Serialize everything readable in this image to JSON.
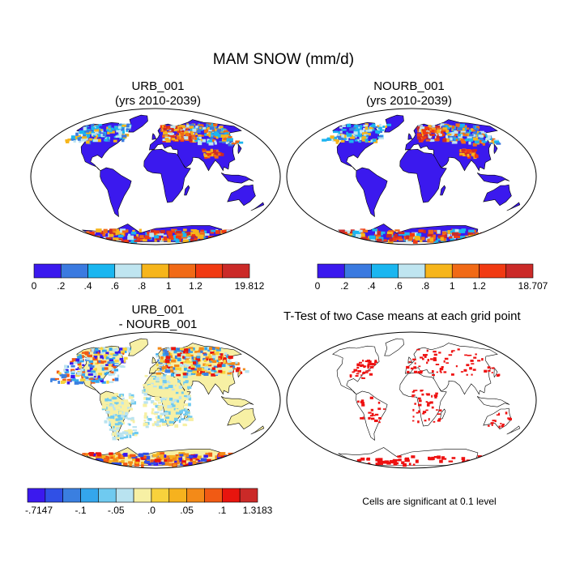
{
  "figure": {
    "title": "MAM SNOW (mm/d)",
    "note": "Cells are significant at 0.1 level"
  },
  "panels": [
    {
      "title_line1": "URB_001",
      "title_line2": "(yrs 2010-2039)",
      "colorbar": {
        "colors": [
          "#3b19ee",
          "#3b7ae0",
          "#1ab6f0",
          "#bfe5f0",
          "#f6b51b",
          "#f16a16",
          "#f13a12",
          "#cb2a28"
        ],
        "labels": [
          "0",
          ".2",
          ".4",
          ".6",
          ".8",
          "1",
          "1.2",
          "19.812"
        ]
      }
    },
    {
      "title_line1": "NOURB_001",
      "title_line2": "(yrs 2010-2039)",
      "colorbar": {
        "colors": [
          "#3b19ee",
          "#3b7ae0",
          "#1ab6f0",
          "#bfe5f0",
          "#f6b51b",
          "#f16a16",
          "#f13a12",
          "#cb2a28"
        ],
        "labels": [
          "0",
          ".2",
          ".4",
          ".6",
          ".8",
          "1",
          "1.2",
          "18.707"
        ]
      }
    },
    {
      "title_line1": "URB_001",
      "title_line2": "- NOURB_001",
      "colorbar": {
        "colors": [
          "#3b19ee",
          "#3050e6",
          "#3a7fe0",
          "#34a6ec",
          "#6fcaf0",
          "#b9e3f0",
          "#f7f0a4",
          "#f8d23c",
          "#f6b21e",
          "#f38a18",
          "#f15a14",
          "#e8150e",
          "#cb2a28"
        ],
        "labels": [
          "-.7147",
          "-.1",
          "-.05",
          ".0",
          ".05",
          ".1",
          "1.3183"
        ]
      }
    },
    {
      "title_line1": "T-Test of two Case means at each grid point"
    }
  ]
}
